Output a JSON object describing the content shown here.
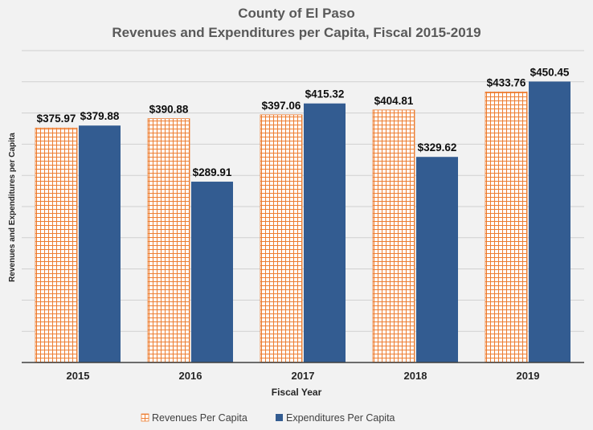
{
  "chart_data": {
    "type": "bar",
    "title": "County of El Paso",
    "subtitle": "Revenues and Expenditures per Capita, Fiscal 2015-2019",
    "xlabel": "Fiscal Year",
    "ylabel": "Revenues and Expenditures per Capita",
    "categories": [
      "2015",
      "2016",
      "2017",
      "2018",
      "2019"
    ],
    "ylim": [
      0,
      500
    ],
    "grid": true,
    "legend_position": "bottom",
    "series": [
      {
        "name": "Revenues Per Capita",
        "values": [
          375.97,
          390.88,
          397.06,
          404.81,
          433.76
        ],
        "labels": [
          "$375.97",
          "$390.88",
          "$397.06",
          "$404.81",
          "$433.76"
        ],
        "color": "#ed7d31",
        "pattern": "grid"
      },
      {
        "name": "Expenditures Per Capita",
        "values": [
          379.88,
          289.91,
          415.32,
          329.62,
          450.45
        ],
        "labels": [
          "$379.88",
          "$289.91",
          "$415.32",
          "$329.62",
          "$450.45"
        ],
        "color": "#335c91",
        "pattern": "solid"
      }
    ]
  }
}
